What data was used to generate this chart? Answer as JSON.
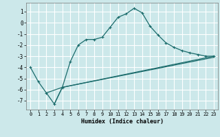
{
  "xlabel": "Humidex (Indice chaleur)",
  "background_color": "#cce8ea",
  "grid_color": "#ffffff",
  "line_color": "#1a6b6b",
  "xlim": [
    -0.5,
    23.5
  ],
  "ylim": [
    -7.8,
    1.8
  ],
  "yticks": [
    1,
    0,
    -1,
    -2,
    -3,
    -4,
    -5,
    -6,
    -7
  ],
  "xticks": [
    0,
    1,
    2,
    3,
    4,
    5,
    6,
    7,
    8,
    9,
    10,
    11,
    12,
    13,
    14,
    15,
    16,
    17,
    18,
    19,
    20,
    21,
    22,
    23
  ],
  "line1_x": [
    0,
    1,
    2,
    3,
    4,
    5,
    6,
    7,
    8,
    9,
    10,
    11,
    12,
    13,
    14,
    15,
    16,
    17,
    18,
    19,
    20,
    21,
    22,
    23
  ],
  "line1_y": [
    -4.0,
    -5.3,
    -6.3,
    -7.3,
    -5.8,
    -3.5,
    -2.0,
    -1.5,
    -1.5,
    -1.3,
    -0.4,
    0.5,
    0.8,
    1.3,
    0.9,
    -0.3,
    -1.1,
    -1.8,
    -2.2,
    -2.5,
    -2.7,
    -2.85,
    -3.0,
    -3.0
  ],
  "line2_x": [
    2,
    4,
    23
  ],
  "line2_y": [
    -6.3,
    -5.8,
    -3.0
  ],
  "line3_x": [
    3,
    4,
    23
  ],
  "line3_y": [
    -7.3,
    -5.8,
    -3.1
  ]
}
